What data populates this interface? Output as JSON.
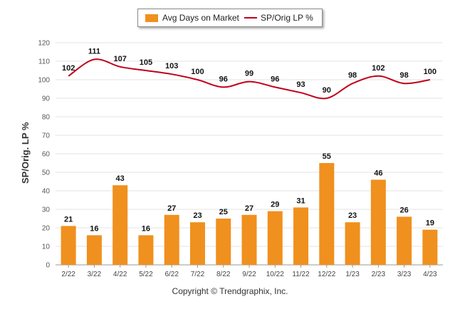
{
  "chart_data": {
    "type": "bar",
    "categories": [
      "2/22",
      "3/22",
      "4/22",
      "5/22",
      "6/22",
      "7/22",
      "8/22",
      "9/22",
      "10/22",
      "11/22",
      "12/22",
      "1/23",
      "2/23",
      "3/23",
      "4/23"
    ],
    "series": [
      {
        "name": "Avg Days on Market",
        "type": "bar",
        "color": "#f0901e",
        "values": [
          21,
          16,
          43,
          16,
          27,
          23,
          25,
          27,
          29,
          31,
          55,
          23,
          46,
          26,
          19
        ]
      },
      {
        "name": "SP/Orig LP %",
        "type": "line",
        "color": "#c0001a",
        "values": [
          102,
          111,
          107,
          105,
          103,
          100,
          96,
          99,
          96,
          93,
          90,
          98,
          102,
          98,
          100
        ]
      }
    ],
    "ylabel": "SP/Orig. LP %",
    "ylim": [
      0,
      120
    ],
    "yticks": [
      0,
      10,
      20,
      30,
      40,
      50,
      60,
      70,
      80,
      90,
      100,
      110,
      120
    ],
    "grid": true,
    "legend": "top-center"
  },
  "footer": {
    "copyright": "Copyright © Trendgraphix, Inc."
  }
}
